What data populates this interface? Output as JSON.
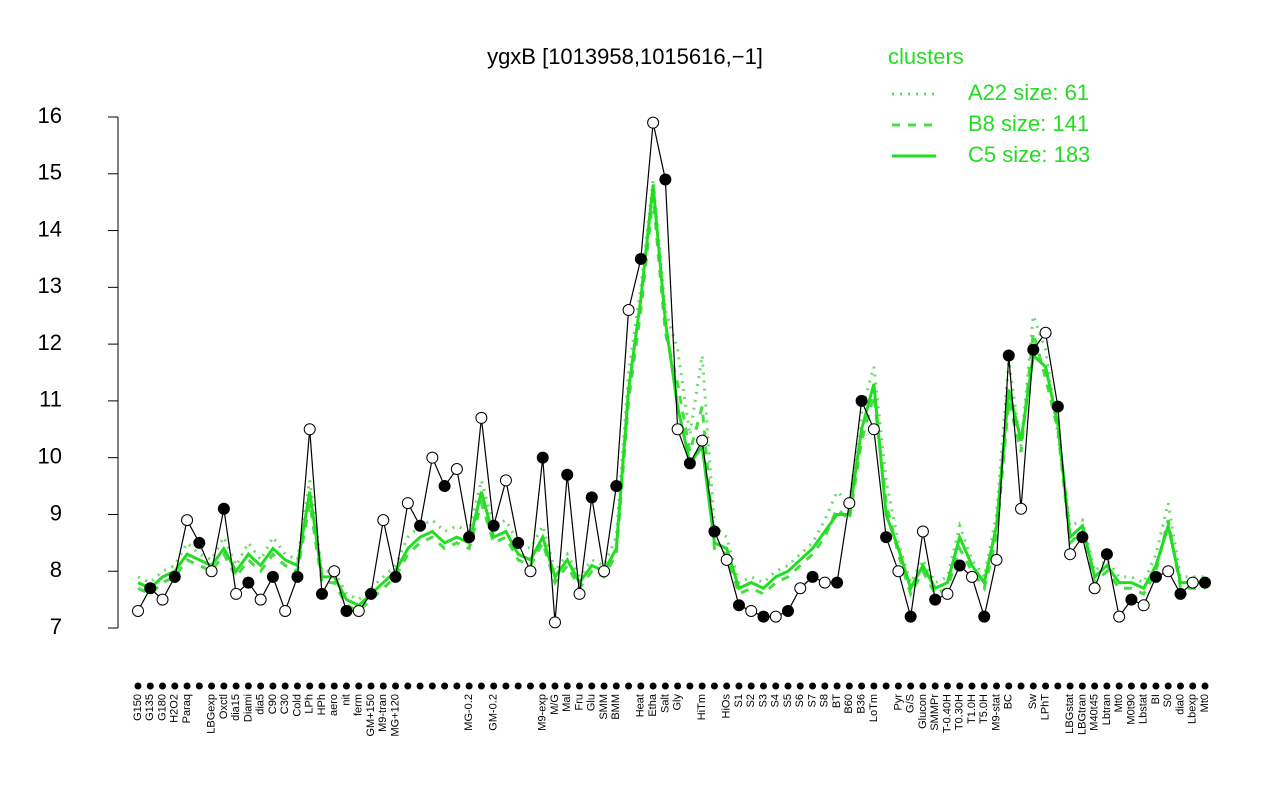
{
  "chart_data": {
    "type": "line",
    "title": "ygxB [1013958,1015616,−1]",
    "legend_title": "clusters",
    "legend_color": "#22dd22",
    "point_color": "#000000",
    "ylim": [
      7,
      16
    ],
    "yticks": [
      7,
      8,
      9,
      10,
      11,
      12,
      13,
      14,
      15,
      16
    ],
    "categories": [
      "G150",
      "G135",
      "G180",
      "H2O2",
      "Paraq",
      null,
      "LBGexp",
      "Oxctl",
      "dia15",
      "Diami",
      "dia5",
      "C90",
      "C30",
      "Cold",
      "LPh",
      "HPh",
      "aero",
      "nit",
      "ferm",
      "GM+150",
      "M9-tran",
      "MG+120",
      null,
      null,
      null,
      null,
      null,
      "MG-0.2",
      null,
      "GM-0.2",
      null,
      null,
      null,
      "M9-exp",
      "M/G",
      "Mal",
      "Fru",
      "Glu",
      "SMM",
      "BMM",
      null,
      "Heat",
      "Etha",
      "Salt",
      "Gly",
      null,
      "HiTm",
      null,
      "HiOs",
      "S1",
      "S2",
      "S3",
      "S4",
      "S5",
      "S6",
      "S7",
      "S8",
      "BT",
      "B60",
      "B36",
      "LoTm",
      null,
      "Pyr",
      "G/S",
      "Glucon",
      "SMMPr",
      "T-0.40H",
      "T0.30H",
      "T1.0H",
      "T5.0H",
      "M9-stat",
      "BC",
      null,
      "Sw",
      "LPhT",
      null,
      "LBGstat",
      "LBGtran",
      "M40t45",
      "Lbtran",
      "Mt0",
      "M0t90",
      "Lbstat",
      "BI",
      "S0",
      "dia0",
      "Lbexp",
      "Mt0"
    ],
    "values": [
      7.3,
      7.7,
      7.5,
      7.9,
      8.9,
      8.5,
      8.0,
      9.1,
      7.6,
      7.8,
      7.5,
      7.9,
      7.3,
      7.9,
      10.5,
      7.6,
      8.0,
      7.3,
      7.3,
      7.6,
      8.9,
      7.9,
      9.2,
      8.8,
      10.0,
      9.5,
      9.8,
      8.6,
      10.7,
      8.8,
      9.6,
      8.5,
      8.0,
      10.0,
      7.1,
      9.7,
      7.6,
      9.3,
      8.0,
      9.5,
      12.6,
      13.5,
      15.9,
      14.9,
      10.5,
      9.9,
      10.3,
      8.7,
      8.2,
      7.4,
      7.3,
      7.2,
      7.2,
      7.3,
      7.7,
      7.9,
      7.8,
      7.8,
      9.2,
      11.0,
      10.5,
      8.6,
      8.0,
      7.2,
      8.7,
      7.5,
      7.6,
      8.1,
      7.9,
      7.2,
      8.2,
      11.8,
      9.1,
      11.9,
      12.2,
      10.9,
      8.3,
      8.6,
      7.7,
      8.3,
      7.2,
      7.5,
      7.4,
      7.9,
      8.0,
      7.6,
      7.8,
      7.8
    ],
    "series": [
      {
        "name": "A22 size: 61",
        "color": "#66dd66",
        "dash": "2,6",
        "values": [
          7.9,
          7.8,
          8.0,
          8.1,
          8.5,
          8.3,
          8.2,
          8.6,
          8.1,
          8.5,
          8.2,
          8.6,
          8.3,
          8.2,
          9.6,
          8.0,
          8.0,
          7.6,
          7.5,
          7.7,
          7.9,
          8.1,
          8.6,
          8.8,
          8.9,
          8.7,
          8.8,
          8.7,
          9.6,
          8.8,
          8.9,
          8.5,
          8.4,
          8.8,
          8.0,
          8.3,
          7.9,
          8.2,
          8.1,
          8.6,
          11.5,
          13.0,
          14.9,
          12.6,
          11.9,
          10.4,
          11.8,
          8.8,
          8.6,
          7.8,
          7.9,
          7.8,
          8.0,
          8.1,
          8.3,
          8.5,
          8.9,
          9.4,
          9.2,
          10.8,
          11.6,
          9.6,
          8.5,
          7.8,
          8.2,
          7.8,
          7.9,
          8.8,
          8.2,
          7.9,
          9.0,
          11.7,
          10.2,
          12.5,
          11.9,
          10.4,
          8.8,
          8.9,
          8.0,
          8.2,
          7.9,
          7.9,
          7.8,
          8.3,
          9.2,
          7.9,
          7.9,
          7.9
        ]
      },
      {
        "name": "B8 size: 141",
        "color": "#44dd44",
        "dash": "8,8",
        "values": [
          7.7,
          7.6,
          7.8,
          7.9,
          8.2,
          8.1,
          8.0,
          8.3,
          7.9,
          8.2,
          8.0,
          8.3,
          8.1,
          8.0,
          9.2,
          7.8,
          7.8,
          7.4,
          7.3,
          7.5,
          7.7,
          7.9,
          8.3,
          8.5,
          8.6,
          8.4,
          8.5,
          8.4,
          9.2,
          8.5,
          8.6,
          8.2,
          8.1,
          8.5,
          7.8,
          8.1,
          7.7,
          8.0,
          7.9,
          8.3,
          11.0,
          12.6,
          14.6,
          12.2,
          11.3,
          10.1,
          10.9,
          8.4,
          8.3,
          7.6,
          7.7,
          7.6,
          7.8,
          7.9,
          8.1,
          8.3,
          8.6,
          9.1,
          8.9,
          10.3,
          11.1,
          9.2,
          8.3,
          7.6,
          8.0,
          7.6,
          7.7,
          8.4,
          8.0,
          7.7,
          8.6,
          11.0,
          10.1,
          12.2,
          11.4,
          10.5,
          8.5,
          8.7,
          7.8,
          8.0,
          7.7,
          7.7,
          7.6,
          8.0,
          8.9,
          7.7,
          7.7,
          7.7
        ]
      },
      {
        "name": "C5 size: 183",
        "color": "#22dd22",
        "dash": "none",
        "values": [
          7.8,
          7.7,
          7.9,
          8.0,
          8.3,
          8.2,
          8.1,
          8.4,
          8.0,
          8.3,
          8.1,
          8.4,
          8.2,
          8.1,
          9.4,
          7.9,
          7.9,
          7.5,
          7.4,
          7.6,
          7.8,
          8.0,
          8.4,
          8.6,
          8.7,
          8.5,
          8.6,
          8.5,
          9.4,
          8.6,
          8.7,
          8.3,
          8.2,
          8.6,
          7.9,
          8.2,
          7.8,
          8.1,
          8.0,
          8.4,
          11.2,
          12.8,
          14.8,
          12.4,
          10.9,
          9.9,
          10.2,
          8.5,
          8.4,
          7.7,
          7.8,
          7.7,
          7.9,
          8.0,
          8.2,
          8.4,
          8.7,
          9.0,
          9.0,
          10.5,
          11.3,
          9.0,
          8.4,
          7.7,
          8.1,
          7.7,
          7.8,
          8.6,
          8.1,
          7.8,
          8.8,
          11.2,
          10.3,
          11.8,
          11.6,
          10.6,
          8.6,
          8.8,
          7.9,
          8.1,
          7.8,
          7.8,
          7.7,
          8.1,
          8.8,
          7.8,
          7.8,
          7.8
        ]
      }
    ]
  }
}
